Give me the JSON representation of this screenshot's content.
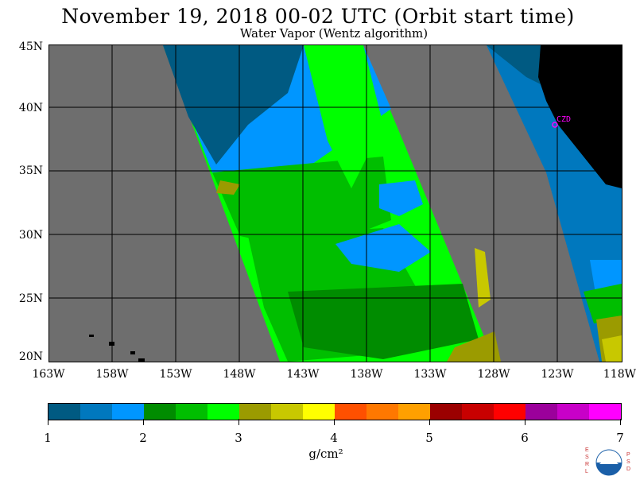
{
  "title": "November 19, 2018  00-02 UTC  (Orbit start time)",
  "subtitle": "Water Vapor (Wentz algorithm)",
  "map": {
    "lat_labels": [
      "45N",
      "40N",
      "35N",
      "30N",
      "25N",
      "20N"
    ],
    "lon_labels": [
      "163W",
      "158W",
      "153W",
      "148W",
      "143W",
      "138W",
      "133W",
      "128W",
      "123W",
      "118W"
    ],
    "station_label": "CZD",
    "colors": {
      "no_data": "#6e6e6e",
      "land": "#000000",
      "grid": "#000000",
      "station": "#ff00ff"
    }
  },
  "colorbar": {
    "tick_labels": [
      "1",
      "2",
      "3",
      "4",
      "5",
      "6",
      "7"
    ],
    "unit_label": "g/cm²",
    "colors": [
      "#005a82",
      "#0078be",
      "#0096ff",
      "#008c00",
      "#00be00",
      "#00ff00",
      "#9b9b00",
      "#c8c800",
      "#ffff00",
      "#ff5000",
      "#ff7800",
      "#ffa000",
      "#9b0000",
      "#c80000",
      "#ff0000",
      "#9b009b",
      "#c800c8",
      "#ff00ff"
    ]
  },
  "logo": {
    "left_letters": "ESRL",
    "right_letters": "PSD",
    "center_text": "NOAA"
  }
}
